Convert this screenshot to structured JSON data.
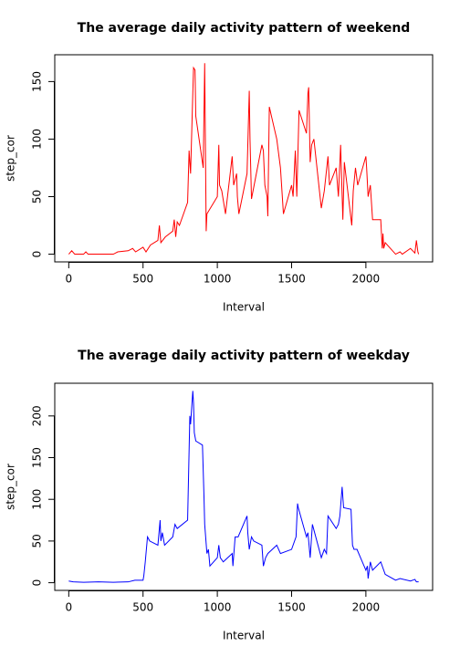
{
  "chart_data": [
    {
      "type": "line",
      "title": "The average daily activity pattern of weekend",
      "xlabel": "Interval",
      "ylabel": "step_cor",
      "x": [
        0,
        20,
        40,
        100,
        115,
        130,
        200,
        300,
        330,
        400,
        430,
        450,
        500,
        520,
        550,
        600,
        610,
        620,
        650,
        700,
        710,
        720,
        730,
        745,
        800,
        810,
        820,
        835,
        840,
        850,
        855,
        905,
        915,
        925,
        930,
        1000,
        1010,
        1015,
        1030,
        1055,
        1100,
        1110,
        1130,
        1135,
        1145,
        1200,
        1215,
        1220,
        1230,
        1300,
        1310,
        1320,
        1335,
        1340,
        1350,
        1400,
        1425,
        1445,
        1500,
        1510,
        1525,
        1535,
        1550,
        1600,
        1610,
        1615,
        1625,
        1635,
        1650,
        1700,
        1720,
        1745,
        1755,
        1800,
        1815,
        1830,
        1845,
        1855,
        1905,
        1915,
        1930,
        1945,
        2000,
        2005,
        2015,
        2030,
        2045,
        2100,
        2110,
        2115,
        2120,
        2130,
        2200,
        2230,
        2245,
        2300,
        2330,
        2340,
        2350,
        2355
      ],
      "series": [
        {
          "color": "#ff0000",
          "values": [
            0,
            3,
            0,
            0,
            2,
            0,
            0,
            0,
            2,
            3,
            5,
            2,
            6,
            2,
            8,
            12,
            25,
            10,
            15,
            20,
            30,
            15,
            28,
            25,
            45,
            90,
            70,
            140,
            162,
            160,
            120,
            75,
            166,
            20,
            35,
            50,
            95,
            60,
            55,
            35,
            85,
            60,
            70,
            50,
            35,
            70,
            142,
            100,
            48,
            95,
            90,
            60,
            50,
            33,
            128,
            100,
            75,
            35,
            60,
            50,
            90,
            50,
            125,
            105,
            140,
            145,
            80,
            95,
            100,
            40,
            55,
            85,
            60,
            75,
            50,
            95,
            30,
            80,
            25,
            55,
            75,
            60,
            85,
            75,
            50,
            60,
            30,
            30,
            5,
            18,
            5,
            10,
            0,
            2,
            0,
            5,
            1,
            12,
            2,
            0
          ]
        }
      ],
      "xlim": [
        -94.2,
        2449.2
      ],
      "ylim": [
        -6.7,
        173.3
      ],
      "xticks": [
        0,
        500,
        1000,
        1500,
        2000
      ],
      "yticks": [
        0,
        50,
        100,
        150
      ]
    },
    {
      "type": "line",
      "title": "The average daily activity pattern of weekday",
      "xlabel": "Interval",
      "ylabel": "step_cor",
      "x": [
        0,
        30,
        100,
        200,
        300,
        400,
        445,
        500,
        505,
        515,
        530,
        545,
        600,
        615,
        620,
        630,
        645,
        700,
        715,
        730,
        800,
        815,
        820,
        835,
        840,
        845,
        855,
        900,
        910,
        915,
        930,
        940,
        950,
        1000,
        1010,
        1020,
        1040,
        1100,
        1105,
        1120,
        1140,
        1200,
        1205,
        1215,
        1230,
        1245,
        1300,
        1310,
        1325,
        1340,
        1400,
        1425,
        1500,
        1530,
        1540,
        1545,
        1600,
        1610,
        1625,
        1640,
        1700,
        1720,
        1735,
        1745,
        1800,
        1815,
        1825,
        1840,
        1850,
        1900,
        1910,
        1920,
        1940,
        2000,
        2010,
        2015,
        2030,
        2045,
        2100,
        2130,
        2200,
        2230,
        2300,
        2330,
        2340,
        2355
      ],
      "series": [
        {
          "color": "#0000ff",
          "values": [
            2,
            1,
            0.5,
            1,
            0.5,
            1,
            3,
            3,
            8,
            25,
            55,
            50,
            45,
            75,
            50,
            60,
            45,
            55,
            70,
            65,
            75,
            200,
            190,
            230,
            215,
            180,
            170,
            165,
            105,
            70,
            35,
            40,
            20,
            30,
            45,
            30,
            25,
            35,
            20,
            55,
            55,
            80,
            60,
            40,
            55,
            50,
            45,
            20,
            30,
            35,
            45,
            35,
            40,
            55,
            95,
            90,
            55,
            60,
            30,
            70,
            30,
            40,
            35,
            80,
            65,
            70,
            80,
            115,
            90,
            88,
            45,
            40,
            40,
            15,
            20,
            5,
            25,
            15,
            25,
            10,
            3,
            5,
            2,
            4,
            1,
            1
          ]
        }
      ],
      "xlim": [
        -94.2,
        2449.2
      ],
      "ylim": [
        -9.2,
        239.2
      ],
      "xticks": [
        0,
        500,
        1000,
        1500,
        2000
      ],
      "yticks": [
        0,
        50,
        100,
        150,
        200
      ]
    }
  ]
}
